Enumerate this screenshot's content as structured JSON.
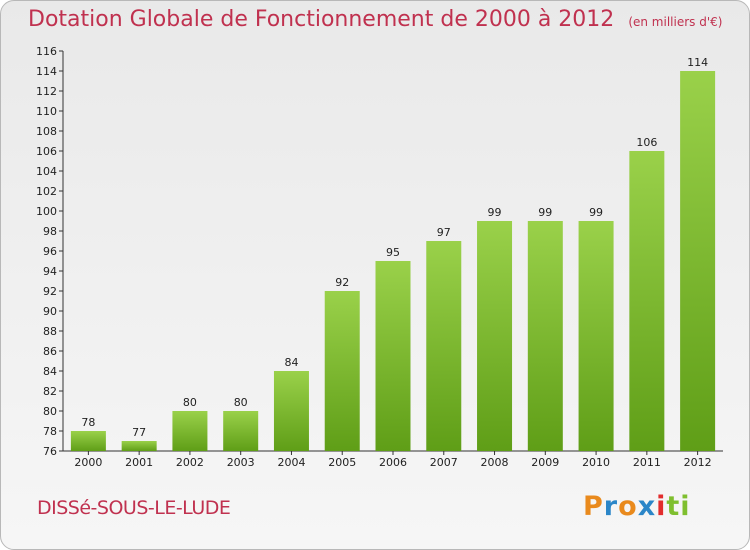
{
  "chart_data": {
    "type": "bar",
    "title": "Dotation Globale de Fonctionnement de 2000 à 2012",
    "unit_note": "(en milliers d'€)",
    "categories": [
      "2000",
      "2001",
      "2002",
      "2003",
      "2004",
      "2005",
      "2006",
      "2007",
      "2008",
      "2009",
      "2010",
      "2011",
      "2012"
    ],
    "values": [
      78,
      77,
      80,
      80,
      84,
      92,
      95,
      97,
      99,
      99,
      99,
      106,
      114
    ],
    "ylim": [
      76,
      116
    ],
    "ytick_step": 2,
    "xlabel": "",
    "ylabel": "",
    "grid": false,
    "bar_color": "#7cba2b"
  },
  "commune": "DISSé-SOUS-LE-LUDE",
  "logo": {
    "letters": [
      "P",
      "r",
      "o",
      "x",
      "i",
      "ti"
    ]
  }
}
